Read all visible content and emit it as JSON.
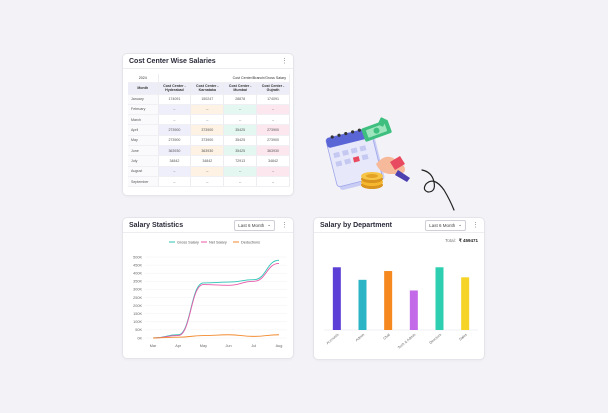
{
  "cost_center": {
    "title": "Cost Center Wise Salaries",
    "year": "2024",
    "group_header": "Cost Center/Branch/Gross Salary",
    "month_header": "Month",
    "columns": [
      "Cost Center - Hyderabad",
      "Cost Center - Karnataka",
      "Cost Center - Mumbai",
      "Cost Center - Gujrath"
    ],
    "rows": [
      {
        "month": "January",
        "values": [
          "174091",
          "150247",
          "28878",
          "174091"
        ]
      },
      {
        "month": "February",
        "values": [
          "--",
          "--",
          "--",
          "--"
        ]
      },
      {
        "month": "March",
        "values": [
          "--",
          "--",
          "--",
          "--"
        ]
      },
      {
        "month": "April",
        "values": [
          "273900",
          "373900",
          "35425",
          "273900"
        ]
      },
      {
        "month": "May",
        "values": [
          "273900",
          "373900",
          "35425",
          "273900"
        ]
      },
      {
        "month": "June",
        "values": [
          "363930",
          "363930",
          "35425",
          "363930"
        ]
      },
      {
        "month": "July",
        "values": [
          "34842",
          "34842",
          "72913",
          "34842"
        ]
      },
      {
        "month": "August",
        "values": [
          "--",
          "--",
          "--",
          "--"
        ]
      },
      {
        "month": "September",
        "values": [
          "--",
          "--",
          "--",
          "--"
        ]
      }
    ]
  },
  "salary_stats": {
    "title": "Salary Statistics",
    "filter": "Last 6 Month",
    "colors": {
      "gross": "#2ec4b6",
      "net": "#e85aa8",
      "deductions": "#f28a2e"
    },
    "chart_data": {
      "type": "line",
      "x": [
        "Mar",
        "Apr",
        "May",
        "Jun",
        "Jul",
        "Aug"
      ],
      "yticks": [
        "0K",
        "50K",
        "100K",
        "150K",
        "200K",
        "250K",
        "300K",
        "350K",
        "400K",
        "450K",
        "500K"
      ],
      "ylim": [
        0,
        500
      ],
      "legend_position": "top",
      "series": [
        {
          "name": "Gross Salary",
          "values": [
            0,
            20,
            340,
            345,
            360,
            480
          ]
        },
        {
          "name": "Net Salary",
          "values": [
            0,
            15,
            330,
            325,
            350,
            460
          ]
        },
        {
          "name": "Deductions",
          "values": [
            0,
            5,
            15,
            20,
            10,
            20
          ]
        }
      ]
    }
  },
  "dept": {
    "title": "Salary by Department",
    "filter": "Last 6 Month",
    "total_label": "Total:",
    "total_value": "₹ 459471",
    "chart_data": {
      "type": "bar",
      "categories": [
        "Accounts",
        "Admin",
        "Chat",
        "Tech & Admin",
        "Directors",
        "Sales"
      ],
      "values": [
        100,
        80,
        94,
        63,
        100,
        84
      ],
      "colors": [
        "#5b3fd6",
        "#2bb3c6",
        "#f5891f",
        "#c36ae8",
        "#2ecfb1",
        "#f5d427"
      ]
    }
  }
}
